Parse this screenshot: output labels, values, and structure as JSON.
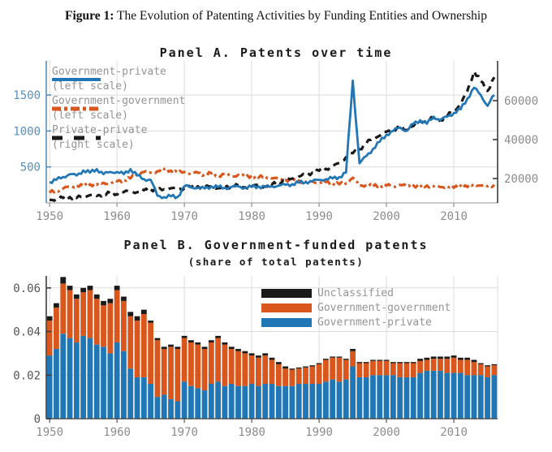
{
  "figure": {
    "caption_label": "Figure 1:",
    "caption_text": " The Evolution of Patenting Activities by Funding Entities and Ownership"
  },
  "colors": {
    "blue": "#2176b5",
    "orange": "#d9561c",
    "black": "#1a1a1a",
    "grid": "#dcdcdc",
    "axisgray": "#8c8c8c",
    "leftblue": "#5b8fba",
    "bylabel": "#555555",
    "spinedark": "#3c3c3c",
    "bottomgray": "#aaaaaa"
  },
  "chart_data": [
    {
      "type": "line",
      "title": "Panel A. Patents over time",
      "x_ticks": [
        1950,
        1960,
        1970,
        1980,
        1990,
        2000,
        2010
      ],
      "years": [
        1950,
        1951,
        1952,
        1953,
        1954,
        1955,
        1956,
        1957,
        1958,
        1959,
        1960,
        1961,
        1962,
        1963,
        1964,
        1965,
        1966,
        1967,
        1968,
        1969,
        1970,
        1971,
        1972,
        1973,
        1974,
        1975,
        1976,
        1977,
        1978,
        1979,
        1980,
        1981,
        1982,
        1983,
        1984,
        1985,
        1986,
        1987,
        1988,
        1989,
        1990,
        1991,
        1992,
        1993,
        1994,
        1995,
        1996,
        1997,
        1998,
        1999,
        2000,
        2001,
        2002,
        2003,
        2004,
        2005,
        2006,
        2007,
        2008,
        2009,
        2010,
        2011,
        2012,
        2013,
        2014,
        2015,
        2016
      ],
      "left_axis": {
        "tick_labels": [
          "500",
          "1000",
          "1500"
        ],
        "range": [
          0,
          1975
        ]
      },
      "right_axis": {
        "tick_labels": [
          "20000",
          "40000",
          "60000"
        ],
        "range": [
          7500,
          80400
        ]
      },
      "legend": [
        {
          "line1": "Government-private",
          "line2": "(left scale)"
        },
        {
          "line1": "Government-government",
          "line2": "(left scale)"
        },
        {
          "line1": "Private-private",
          "line2": "(right scale)"
        }
      ],
      "series": [
        {
          "name": "Government-government (left scale)",
          "axis": "left",
          "style": "dashdot",
          "color": "#d9561c",
          "values": [
            140,
            170,
            200,
            220,
            240,
            230,
            260,
            250,
            280,
            270,
            300,
            320,
            340,
            400,
            430,
            420,
            440,
            470,
            450,
            420,
            430,
            400,
            420,
            390,
            410,
            380,
            400,
            370,
            390,
            360,
            380,
            350,
            370,
            340,
            330,
            320,
            300,
            310,
            290,
            300,
            280,
            290,
            270,
            260,
            270,
            350,
            240,
            250,
            230,
            250,
            240,
            230,
            250,
            230,
            240,
            220,
            240,
            230,
            220,
            230,
            210,
            240,
            220,
            260,
            240,
            230,
            250
          ]
        },
        {
          "name": "Private-private (right scale)",
          "axis": "right",
          "style": "dashed",
          "color": "#1a1a1a",
          "values": [
            9000,
            9500,
            10000,
            10500,
            10000,
            11000,
            11500,
            11000,
            12000,
            12500,
            12000,
            13000,
            13500,
            13000,
            14000,
            14500,
            14000,
            14500,
            15000,
            14500,
            15000,
            15500,
            16000,
            15500,
            16000,
            15000,
            15500,
            16000,
            16500,
            15500,
            16000,
            16500,
            16000,
            17000,
            18000,
            19000,
            20000,
            21000,
            22000,
            23000,
            24000,
            25000,
            26000,
            28000,
            31000,
            33000,
            35000,
            38000,
            41000,
            42000,
            44000,
            45000,
            46000,
            45000,
            47000,
            49000,
            50000,
            51000,
            50000,
            52000,
            55000,
            58000,
            65000,
            75000,
            70000,
            65000,
            72000
          ]
        },
        {
          "name": "Government-private (left scale)",
          "axis": "left",
          "style": "solid",
          "color": "#2176b5",
          "values": [
            290,
            320,
            360,
            400,
            380,
            450,
            420,
            470,
            400,
            430,
            430,
            400,
            470,
            380,
            330,
            320,
            100,
            80,
            90,
            85,
            230,
            220,
            210,
            200,
            230,
            220,
            210,
            220,
            230,
            210,
            220,
            230,
            220,
            230,
            240,
            250,
            260,
            280,
            290,
            300,
            320,
            330,
            340,
            360,
            420,
            1700,
            550,
            650,
            750,
            850,
            950,
            1000,
            1050,
            1000,
            1100,
            1150,
            1100,
            1200,
            1150,
            1200,
            1250,
            1300,
            1450,
            1600,
            1500,
            1350,
            1500
          ]
        }
      ]
    },
    {
      "type": "bar",
      "title": "Panel B. Government-funded patents",
      "subtitle": "(share of total patents)",
      "x_ticks": [
        1950,
        1960,
        1970,
        1980,
        1990,
        2000,
        2010
      ],
      "y_ticks": [
        "0",
        "0.02",
        "0.04",
        "0.06"
      ],
      "ylim": [
        0,
        0.0655
      ],
      "years": [
        1950,
        1951,
        1952,
        1953,
        1954,
        1955,
        1956,
        1957,
        1958,
        1959,
        1960,
        1961,
        1962,
        1963,
        1964,
        1965,
        1966,
        1967,
        1968,
        1969,
        1970,
        1971,
        1972,
        1973,
        1974,
        1975,
        1976,
        1977,
        1978,
        1979,
        1980,
        1981,
        1982,
        1983,
        1984,
        1985,
        1986,
        1987,
        1988,
        1989,
        1990,
        1991,
        1992,
        1993,
        1994,
        1995,
        1996,
        1997,
        1998,
        1999,
        2000,
        2001,
        2002,
        2003,
        2004,
        2005,
        2006,
        2007,
        2008,
        2009,
        2010,
        2011,
        2012,
        2013,
        2014,
        2015,
        2016
      ],
      "legend": [
        "Unclassified",
        "Government-government",
        "Government-private"
      ],
      "stacked_series": [
        {
          "name": "Government-private",
          "color": "#2176b5",
          "values": [
            0.029,
            0.032,
            0.039,
            0.037,
            0.035,
            0.038,
            0.037,
            0.034,
            0.033,
            0.03,
            0.035,
            0.031,
            0.023,
            0.019,
            0.019,
            0.016,
            0.01,
            0.011,
            0.009,
            0.008,
            0.017,
            0.015,
            0.014,
            0.013,
            0.016,
            0.017,
            0.015,
            0.016,
            0.015,
            0.015,
            0.016,
            0.015,
            0.016,
            0.016,
            0.015,
            0.015,
            0.015,
            0.016,
            0.016,
            0.016,
            0.016,
            0.017,
            0.018,
            0.017,
            0.018,
            0.024,
            0.019,
            0.019,
            0.02,
            0.02,
            0.02,
            0.02,
            0.019,
            0.019,
            0.019,
            0.021,
            0.022,
            0.022,
            0.022,
            0.021,
            0.021,
            0.021,
            0.02,
            0.02,
            0.02,
            0.019,
            0.02
          ]
        },
        {
          "name": "Government-government",
          "color": "#d9561c",
          "values": [
            0.016,
            0.019,
            0.023,
            0.022,
            0.02,
            0.02,
            0.022,
            0.021,
            0.019,
            0.023,
            0.024,
            0.023,
            0.024,
            0.026,
            0.029,
            0.028,
            0.026,
            0.021,
            0.024,
            0.024,
            0.02,
            0.02,
            0.02,
            0.019,
            0.019,
            0.02,
            0.019,
            0.016,
            0.016,
            0.015,
            0.013,
            0.013,
            0.013,
            0.011,
            0.01,
            0.008,
            0.0075,
            0.007,
            0.0075,
            0.008,
            0.009,
            0.01,
            0.01,
            0.011,
            0.009,
            0.007,
            0.0065,
            0.0065,
            0.0065,
            0.0065,
            0.0065,
            0.0055,
            0.0065,
            0.0065,
            0.0065,
            0.0055,
            0.005,
            0.0055,
            0.0055,
            0.0065,
            0.007,
            0.006,
            0.007,
            0.006,
            0.005,
            0.005,
            0.0045
          ]
        },
        {
          "name": "Unclassified",
          "color": "#1a1a1a",
          "values": [
            0.002,
            0.002,
            0.003,
            0.002,
            0.002,
            0.002,
            0.002,
            0.002,
            0.002,
            0.002,
            0.002,
            0.002,
            0.002,
            0.002,
            0.002,
            0.001,
            0.001,
            0.001,
            0.001,
            0.001,
            0.001,
            0.001,
            0.001,
            0.001,
            0.001,
            0.001,
            0.001,
            0.001,
            0.001,
            0.001,
            0.001,
            0.001,
            0.001,
            0.001,
            0.001,
            0.001,
            0.0005,
            0.0005,
            0.0005,
            0.0005,
            0.0005,
            0.0005,
            0.0005,
            0.0005,
            0.0005,
            0.001,
            0.0005,
            0.0005,
            0.0005,
            0.0005,
            0.0005,
            0.0005,
            0.0005,
            0.0005,
            0.0005,
            0.001,
            0.001,
            0.001,
            0.001,
            0.001,
            0.001,
            0.001,
            0.001,
            0.001,
            0.0005,
            0.0005,
            0.0005
          ]
        }
      ]
    }
  ]
}
